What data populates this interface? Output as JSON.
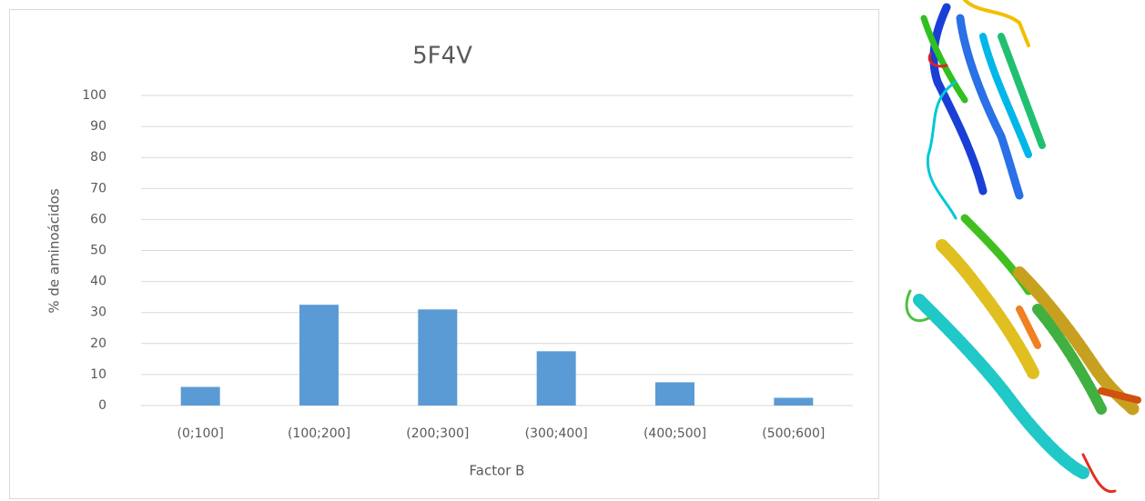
{
  "chart_data": {
    "type": "bar",
    "title": "5F4V",
    "x_label": "Factor B",
    "y_label": "% de aminoácidos",
    "categories": [
      "(0;100]",
      "(100;200]",
      "(200;300]",
      "(300;400]",
      "(400;500]",
      "(500;600]"
    ],
    "values": [
      6,
      32.5,
      31,
      17.5,
      7.5,
      2.5
    ],
    "color": "#5b9bd5",
    "ylim": [
      0,
      100
    ],
    "yticks": [
      0,
      10,
      20,
      30,
      40,
      50,
      60,
      70,
      80,
      90,
      100
    ],
    "grid": true
  }
}
